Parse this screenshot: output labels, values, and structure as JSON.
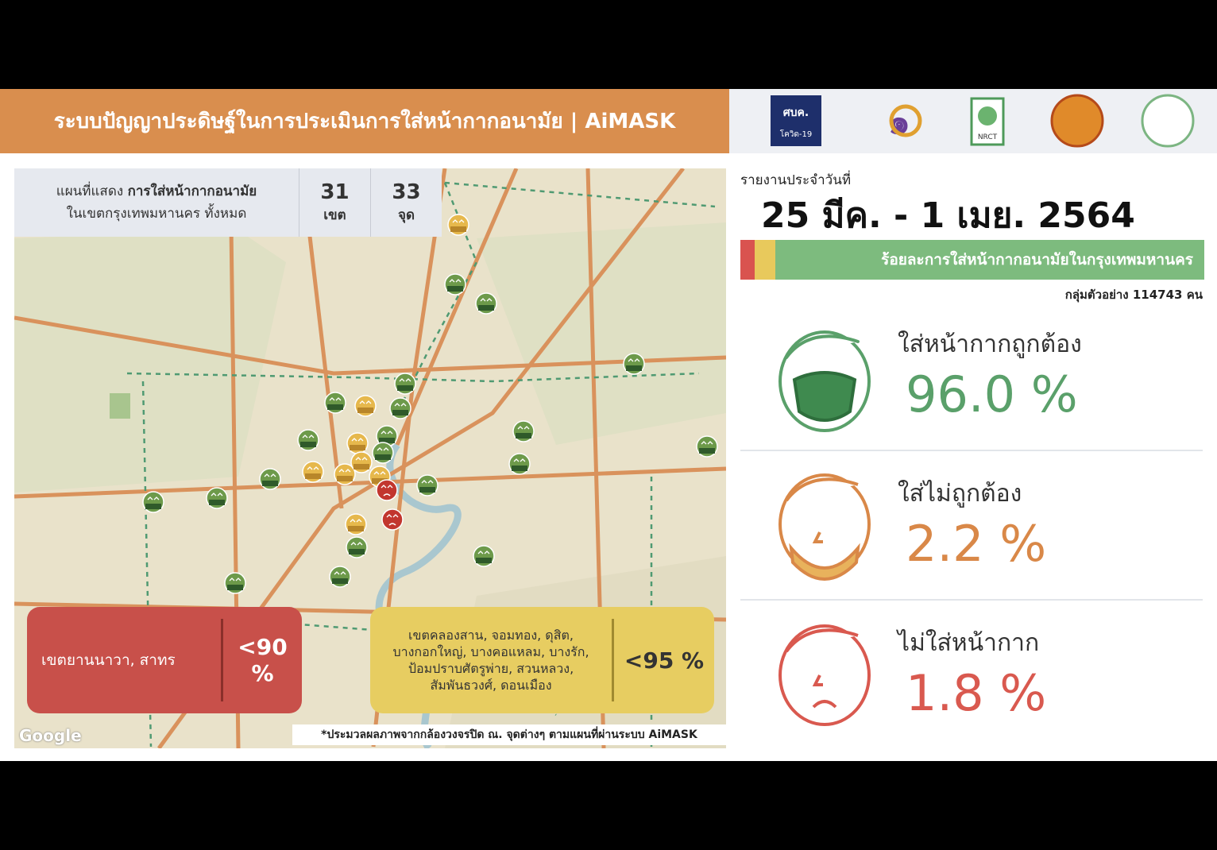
{
  "header": {
    "title": "ระบบปัญญาประดิษฐ์ในการประเมินการใส่หน้ากากอนามัย | AiMASK",
    "logos": [
      "ศบค.",
      "โควิด-19",
      "NRCT"
    ]
  },
  "map": {
    "info_prefix": "แผนที่แสดง ",
    "info_bold": "การใส่หน้ากากอนามัย",
    "info_line2": "ในเขตกรุงเทพมหานคร ทั้งหมด",
    "districts": {
      "count": "31",
      "unit": "เขต"
    },
    "points": {
      "count": "33",
      "unit": "จุด"
    },
    "red_box": {
      "label": "เขตยานนาวา, สาทร",
      "value": "<90 %"
    },
    "yellow_box": {
      "lines": [
        "เขตคลองสาน, จอมทอง, ดุสิต,",
        "บางกอกใหญ่, บางคอแหลม, บางรัก,",
        "ป้อมปราบศัตรูพ่าย, สวนหลวง,",
        "สัมพันธวงศ์, ดอนเมือง"
      ],
      "value": "<95 %"
    },
    "footnote": "*ประมวลผลภาพจากกล้องวงจรปิด ณ. จุดต่างๆ ตามแผนที่ผ่านระบบ AiMASK",
    "attribution": "Google"
  },
  "report": {
    "label": "รายงานประจำวันที่",
    "date": "25 มีค. - 1 เมย. 2564",
    "bar_title": "ร้อยละการใส่หน้ากากอนามัยในกรุงเทพมหานคร",
    "sample": "กลุ่มตัวอย่าง 114743 คน",
    "categories": [
      {
        "label": "ใส่หน้ากากถูกต้อง",
        "value": "96.0 %"
      },
      {
        "label": "ใส่ไม่ถูกต้อง",
        "value": "2.2 %"
      },
      {
        "label": "ไม่ใส่หน้ากาก",
        "value": "1.8 %"
      }
    ]
  }
}
